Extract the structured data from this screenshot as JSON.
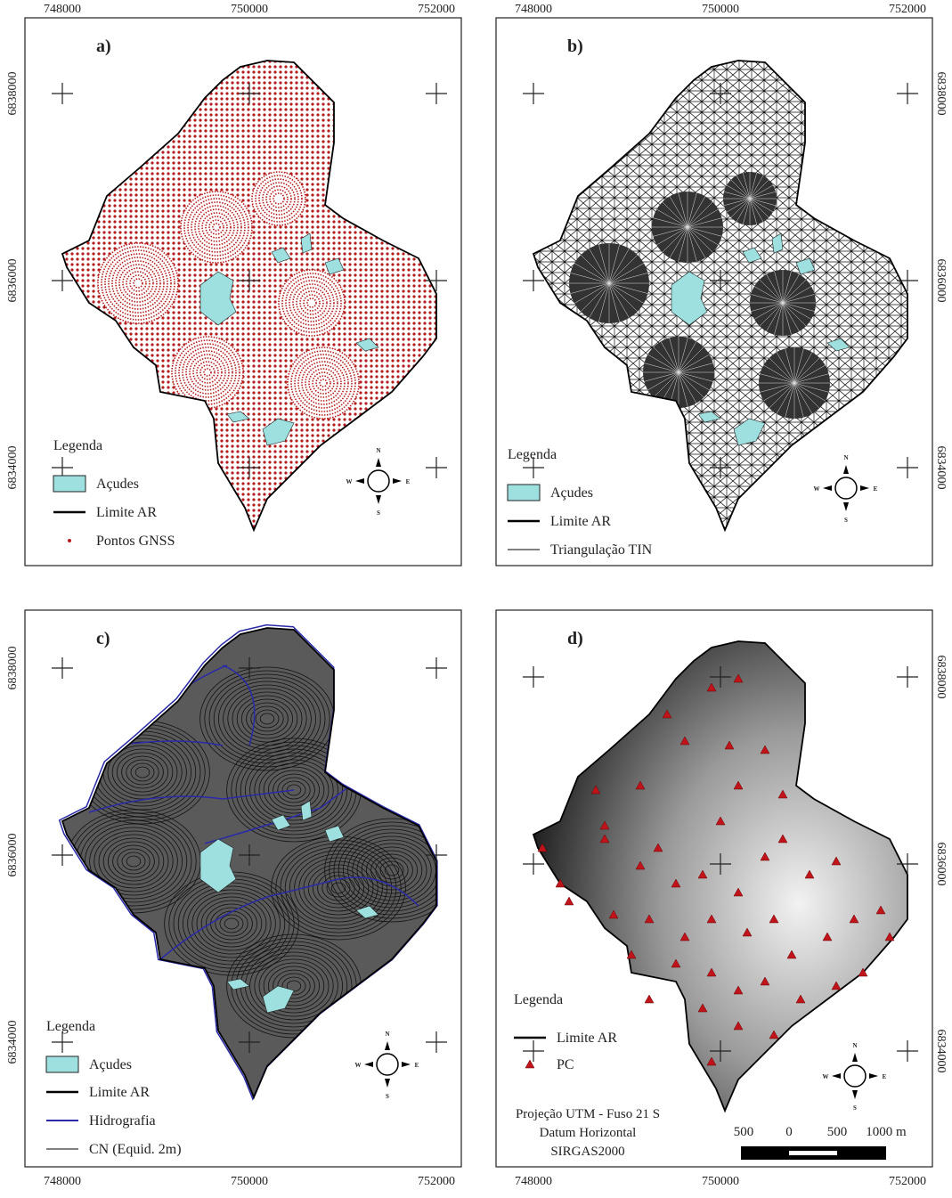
{
  "panels": [
    {
      "label": "a)",
      "x_ticks_top": [
        748000,
        750000,
        752000
      ],
      "y_ticks_left": [
        6838000,
        6836000,
        6834000
      ],
      "legend": {
        "title": "Legenda",
        "items": [
          "Açudes",
          "Limite AR",
          "Pontos GNSS"
        ]
      }
    },
    {
      "label": "b)",
      "x_ticks_top": [
        748000,
        750000,
        752000
      ],
      "y_ticks_right": [
        6838000,
        6836000,
        6834000
      ],
      "legend": {
        "title": "Legenda",
        "items": [
          "Açudes",
          "Limite AR",
          "Triangulação TIN"
        ]
      }
    },
    {
      "label": "c)",
      "y_ticks_left": [
        6838000,
        6836000,
        6834000
      ],
      "x_ticks_bottom": [
        748000,
        750000,
        752000
      ],
      "legend": {
        "title": "Legenda",
        "items": [
          "Açudes",
          "Limite AR",
          "Hidrografia",
          "CN (Equid. 2m)"
        ]
      }
    },
    {
      "label": "d)",
      "y_ticks_right": [
        6838000,
        6836000,
        6834000
      ],
      "x_ticks_bottom": [
        748000,
        750000,
        752000
      ],
      "legend": {
        "title": "Legenda",
        "items": [
          "Limite AR",
          "PC"
        ]
      },
      "scale_bar": {
        "labels": [
          "500",
          "0",
          "500",
          "1000 m"
        ]
      },
      "projection": [
        "Projeção UTM - Fuso 21 S",
        "Datum Horizontal",
        "SIRGAS2000"
      ]
    }
  ],
  "compass": {
    "n": "N",
    "s": "S",
    "e": "E",
    "w": "W"
  }
}
